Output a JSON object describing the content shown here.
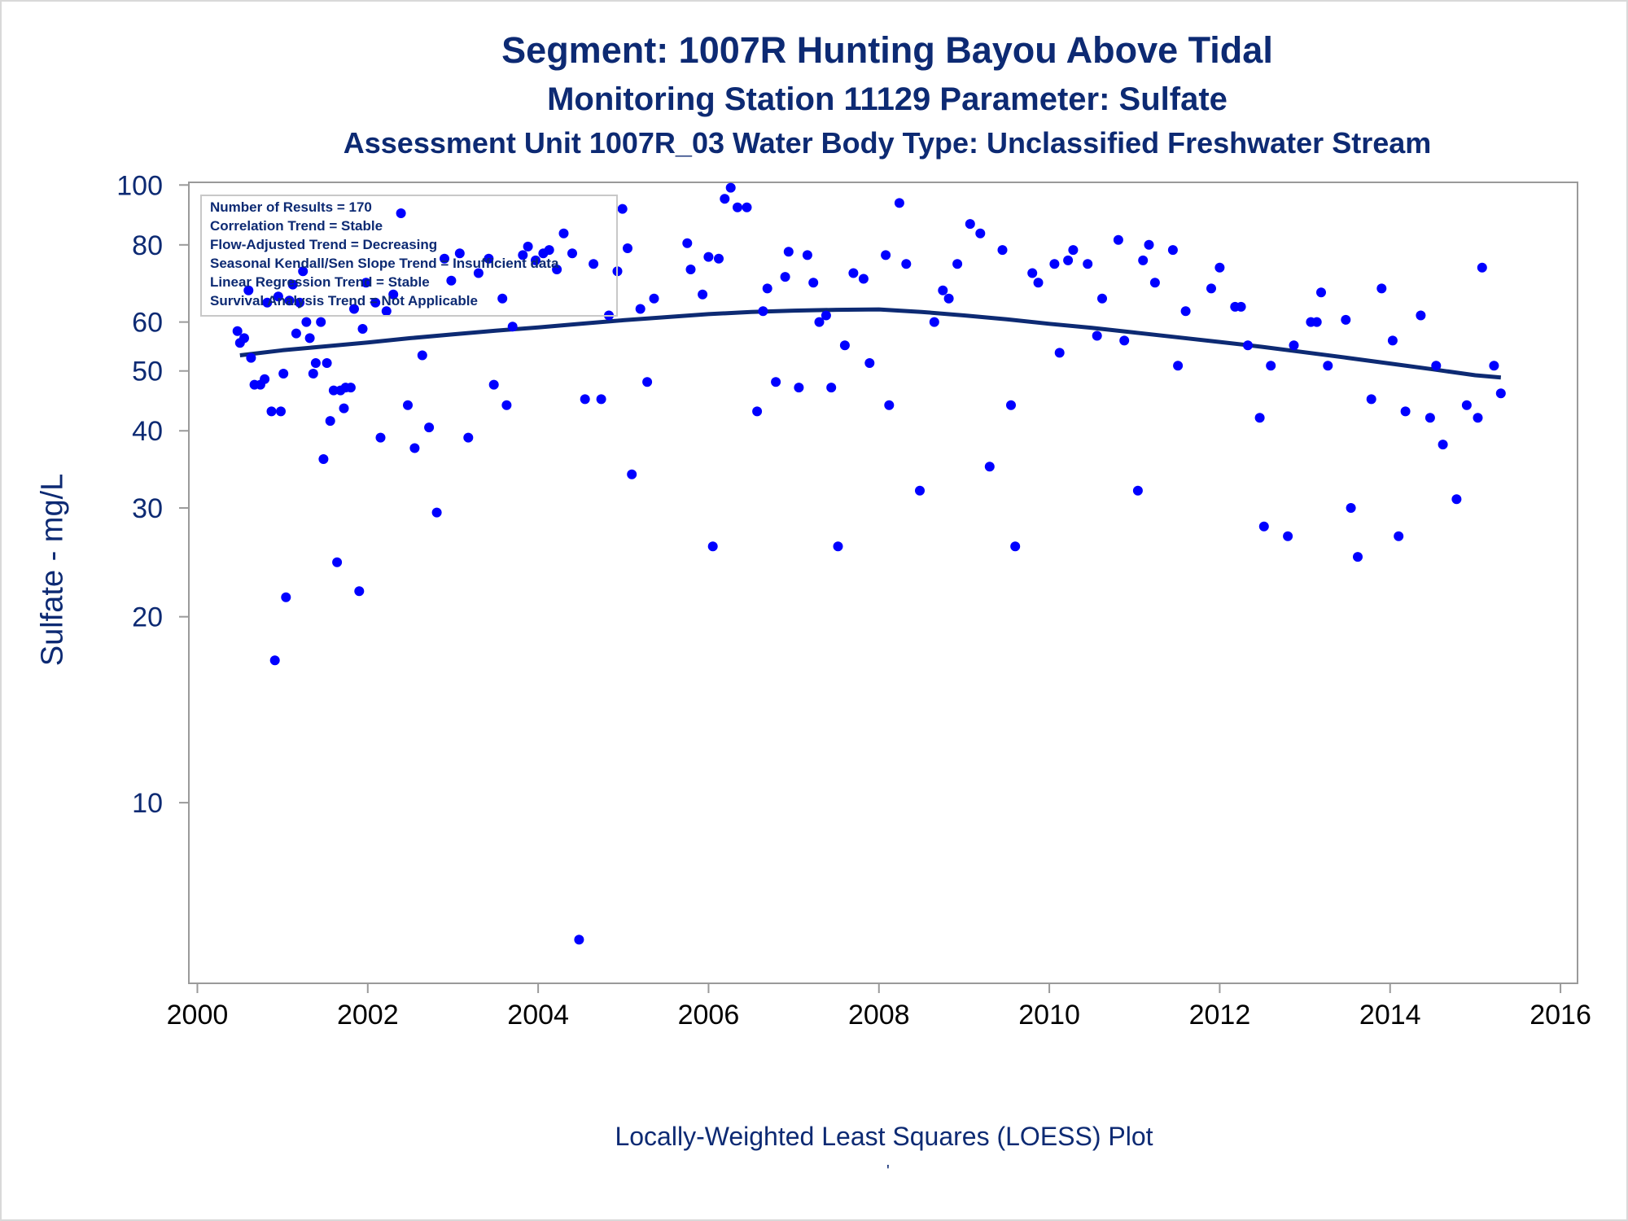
{
  "titles": {
    "line1": "Segment: 1007R  Hunting Bayou Above Tidal",
    "line2": "Monitoring Station 11129 Parameter: Sulfate",
    "line3": "Assessment Unit 1007R_03   Water Body Type: Unclassified Freshwater Stream"
  },
  "footnote": "Locally-Weighted Least Squares (LOESS) Plot",
  "footnote_mark": "'",
  "stats": [
    "Number of Results = 170",
    "Correlation Trend = Stable",
    "Flow-Adjusted Trend = Decreasing",
    "Seasonal Kendall/Sen Slope Trend = Insufficient data",
    "Linear Regression Trend = Stable",
    "Survival Analysis Trend = Not Applicable"
  ],
  "colors": {
    "points": "#0000ff",
    "loess": "#0d2a73",
    "text": "#0d2a73",
    "axis": "#9a9a9a"
  },
  "chart_data": {
    "type": "scatter",
    "title": "Segment: 1007R  Hunting Bayou Above Tidal",
    "ylabel": "Sulfate - mg/L",
    "xlabel": "",
    "yscale": "log",
    "xlim": [
      1999.9,
      2016.2
    ],
    "ylim": [
      5.1,
      101
    ],
    "x_ticks": [
      2000,
      2002,
      2004,
      2006,
      2008,
      2010,
      2012,
      2014,
      2016
    ],
    "y_ticks": [
      10,
      20,
      30,
      40,
      50,
      60,
      80,
      100
    ],
    "grid": false,
    "series": [
      {
        "type": "scatter",
        "points": [
          [
            2000.47,
            58
          ],
          [
            2000.5,
            55.5
          ],
          [
            2000.55,
            56.5
          ],
          [
            2000.6,
            67.5
          ],
          [
            2000.63,
            52.5
          ],
          [
            2000.67,
            47.5
          ],
          [
            2000.74,
            47.5
          ],
          [
            2000.79,
            48.5
          ],
          [
            2000.82,
            64.5
          ],
          [
            2000.87,
            43
          ],
          [
            2000.91,
            17
          ],
          [
            2000.95,
            66
          ],
          [
            2000.98,
            43
          ],
          [
            2001.01,
            49.5
          ],
          [
            2001.04,
            21.5
          ],
          [
            2001.08,
            65
          ],
          [
            2001.12,
            69
          ],
          [
            2001.16,
            57.5
          ],
          [
            2001.2,
            64.5
          ],
          [
            2001.24,
            72.5
          ],
          [
            2001.28,
            60
          ],
          [
            2001.32,
            56.5
          ],
          [
            2001.36,
            49.5
          ],
          [
            2001.39,
            51.5
          ],
          [
            2001.45,
            60
          ],
          [
            2001.48,
            36
          ],
          [
            2001.52,
            51.5
          ],
          [
            2001.56,
            41.5
          ],
          [
            2001.6,
            46.5
          ],
          [
            2001.64,
            24.5
          ],
          [
            2001.68,
            46.5
          ],
          [
            2001.72,
            43.5
          ],
          [
            2001.74,
            47
          ],
          [
            2001.8,
            47
          ],
          [
            2001.84,
            63
          ],
          [
            2001.9,
            22
          ],
          [
            2001.94,
            58.5
          ],
          [
            2001.98,
            69.5
          ],
          [
            2002.09,
            64.5
          ],
          [
            2002.15,
            39
          ],
          [
            2002.22,
            62.5
          ],
          [
            2002.3,
            66.5
          ],
          [
            2002.39,
            90
          ],
          [
            2002.47,
            44
          ],
          [
            2002.55,
            37.5
          ],
          [
            2002.64,
            53
          ],
          [
            2002.72,
            40.5
          ],
          [
            2002.81,
            29.5
          ],
          [
            2002.9,
            76
          ],
          [
            2002.98,
            70
          ],
          [
            2003.08,
            77.5
          ],
          [
            2003.18,
            39
          ],
          [
            2003.3,
            72
          ],
          [
            2003.42,
            76
          ],
          [
            2003.48,
            47.5
          ],
          [
            2003.58,
            65.5
          ],
          [
            2003.63,
            44
          ],
          [
            2003.7,
            59
          ],
          [
            2003.82,
            77
          ],
          [
            2003.88,
            79.5
          ],
          [
            2003.97,
            75.5
          ],
          [
            2004.06,
            77.5
          ],
          [
            2004.13,
            78.5
          ],
          [
            2004.22,
            73
          ],
          [
            2004.3,
            83.5
          ],
          [
            2004.4,
            77.5
          ],
          [
            2004.48,
            6
          ],
          [
            2004.55,
            45
          ],
          [
            2004.65,
            74.5
          ],
          [
            2004.74,
            45
          ],
          [
            2004.83,
            61.5
          ],
          [
            2004.93,
            72.5
          ],
          [
            2004.99,
            91.5
          ],
          [
            2005.05,
            79
          ],
          [
            2005.1,
            34
          ],
          [
            2005.2,
            63
          ],
          [
            2005.28,
            48
          ],
          [
            2005.36,
            65.5
          ],
          [
            2005.75,
            80.5
          ],
          [
            2005.79,
            73
          ],
          [
            2005.93,
            66.5
          ],
          [
            2006.0,
            76.5
          ],
          [
            2006.05,
            26
          ],
          [
            2006.12,
            76
          ],
          [
            2006.19,
            95
          ],
          [
            2006.26,
            99
          ],
          [
            2006.34,
            92
          ],
          [
            2006.45,
            92
          ],
          [
            2006.57,
            43
          ],
          [
            2006.64,
            62.5
          ],
          [
            2006.69,
            68
          ],
          [
            2006.79,
            48
          ],
          [
            2006.9,
            71
          ],
          [
            2006.94,
            78
          ],
          [
            2007.06,
            47
          ],
          [
            2007.16,
            77
          ],
          [
            2007.23,
            69.5
          ],
          [
            2007.3,
            60
          ],
          [
            2007.38,
            61.5
          ],
          [
            2007.44,
            47
          ],
          [
            2007.52,
            26
          ],
          [
            2007.6,
            55
          ],
          [
            2007.7,
            72
          ],
          [
            2007.82,
            70.5
          ],
          [
            2007.89,
            51.5
          ],
          [
            2008.08,
            77
          ],
          [
            2008.12,
            44
          ],
          [
            2008.24,
            93.5
          ],
          [
            2008.32,
            74.5
          ],
          [
            2008.48,
            32
          ],
          [
            2008.65,
            60
          ],
          [
            2008.75,
            67.5
          ],
          [
            2008.82,
            65.5
          ],
          [
            2008.92,
            74.5
          ],
          [
            2009.07,
            86.5
          ],
          [
            2009.19,
            83.5
          ],
          [
            2009.3,
            35
          ],
          [
            2009.45,
            78.5
          ],
          [
            2009.55,
            44
          ],
          [
            2009.6,
            26
          ],
          [
            2009.8,
            72
          ],
          [
            2009.87,
            69.5
          ],
          [
            2010.06,
            74.5
          ],
          [
            2010.12,
            53.5
          ],
          [
            2010.22,
            75.5
          ],
          [
            2010.28,
            78.5
          ],
          [
            2010.45,
            74.5
          ],
          [
            2010.56,
            57
          ],
          [
            2010.62,
            65.5
          ],
          [
            2010.81,
            81.5
          ],
          [
            2010.88,
            56
          ],
          [
            2011.04,
            32
          ],
          [
            2011.1,
            75.5
          ],
          [
            2011.17,
            80
          ],
          [
            2011.24,
            69.5
          ],
          [
            2011.45,
            78.5
          ],
          [
            2011.51,
            51
          ],
          [
            2011.6,
            62.5
          ],
          [
            2011.9,
            68
          ],
          [
            2012.0,
            73.5
          ],
          [
            2012.18,
            63.5
          ],
          [
            2012.25,
            63.5
          ],
          [
            2012.33,
            55
          ],
          [
            2012.47,
            42
          ],
          [
            2012.52,
            28
          ],
          [
            2012.6,
            51
          ],
          [
            2012.8,
            27
          ],
          [
            2012.87,
            55
          ],
          [
            2013.07,
            60
          ],
          [
            2013.14,
            60
          ],
          [
            2013.19,
            67
          ],
          [
            2013.27,
            51
          ],
          [
            2013.48,
            60.5
          ],
          [
            2013.54,
            30
          ],
          [
            2013.62,
            25
          ],
          [
            2013.78,
            45
          ],
          [
            2013.9,
            68
          ],
          [
            2014.03,
            56
          ],
          [
            2014.1,
            27
          ],
          [
            2014.18,
            43
          ],
          [
            2014.36,
            61.5
          ],
          [
            2014.47,
            42
          ],
          [
            2014.54,
            51
          ],
          [
            2014.62,
            38
          ],
          [
            2014.78,
            31
          ],
          [
            2014.9,
            44
          ],
          [
            2015.03,
            42
          ],
          [
            2015.08,
            73.5
          ],
          [
            2015.22,
            51
          ],
          [
            2015.3,
            46
          ]
        ]
      },
      {
        "type": "loess",
        "x": [
          2000.5,
          2001.0,
          2001.5,
          2002.0,
          2002.5,
          2003.0,
          2003.5,
          2004.0,
          2004.5,
          2005.0,
          2005.5,
          2006.0,
          2006.5,
          2007.0,
          2007.5,
          2008.0,
          2008.5,
          2009.0,
          2009.5,
          2010.0,
          2010.5,
          2011.0,
          2011.5,
          2012.0,
          2012.5,
          2013.0,
          2013.5,
          2014.0,
          2014.5,
          2015.0,
          2015.3
        ],
        "y": [
          53,
          54,
          54.8,
          55.6,
          56.5,
          57.3,
          58.1,
          58.8,
          59.6,
          60.4,
          61.1,
          61.8,
          62.3,
          62.6,
          62.8,
          62.9,
          62.3,
          61.5,
          60.6,
          59.6,
          58.7,
          57.7,
          56.7,
          55.7,
          54.7,
          53.6,
          52.5,
          51.4,
          50.3,
          49.2,
          48.8
        ]
      }
    ]
  }
}
